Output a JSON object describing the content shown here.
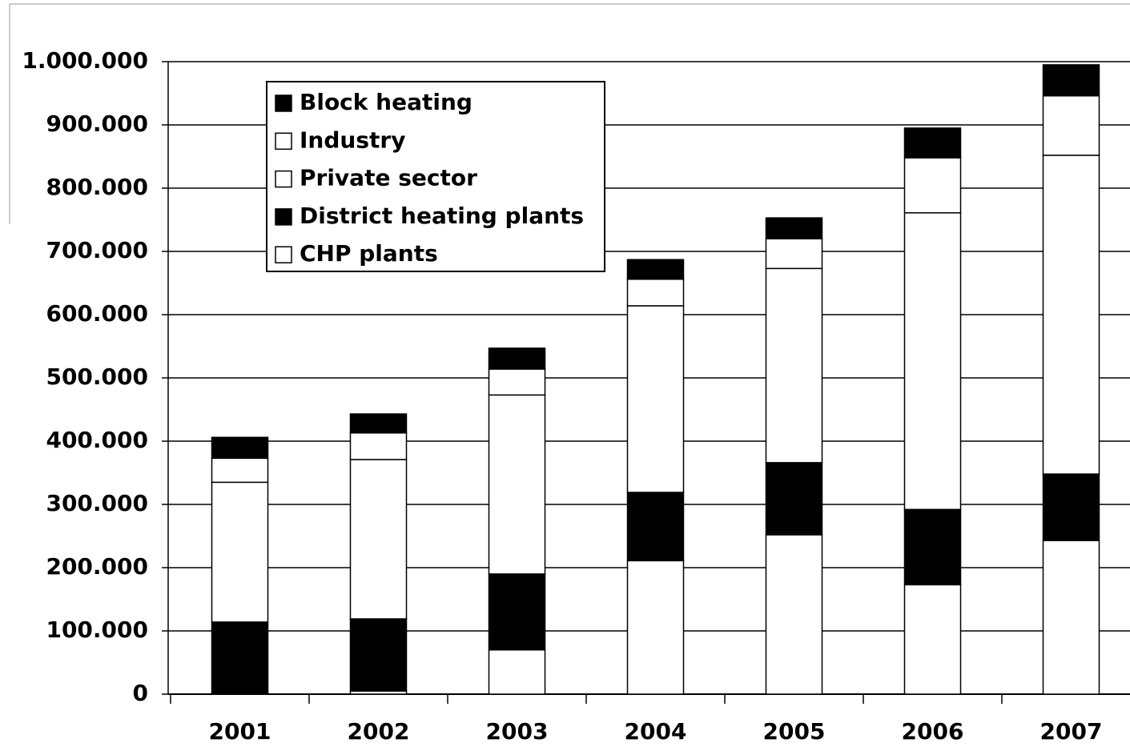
{
  "chart_data": {
    "type": "stacked-bar",
    "categories": [
      "2001",
      "2002",
      "2003",
      "2004",
      "2005",
      "2006",
      "2007"
    ],
    "series": [
      {
        "name": "CHP plants",
        "color": "#ffffff",
        "values": [
          0,
          5000,
          70000,
          211000,
          252000,
          173000,
          243000
        ]
      },
      {
        "name": "District heating plants",
        "color": "#000000",
        "values": [
          114000,
          114000,
          120000,
          108000,
          114000,
          119000,
          105000
        ]
      },
      {
        "name": "Private sector",
        "color": "#ffffff",
        "values": [
          221000,
          252000,
          283000,
          295000,
          307000,
          469000,
          504000
        ]
      },
      {
        "name": "Industry",
        "color": "#ffffff",
        "values": [
          38000,
          42000,
          41000,
          42000,
          47000,
          87000,
          94000
        ]
      },
      {
        "name": "Block heating",
        "color": "#000000",
        "values": [
          33000,
          30000,
          33000,
          31000,
          33000,
          47000,
          49000
        ]
      }
    ],
    "ylim": [
      0,
      1000000
    ],
    "yticks": [
      0,
      {
        "value": 100000,
        "label": "100.000"
      },
      {
        "value": 200000,
        "label": "200.000"
      },
      {
        "value": 300000,
        "label": "300.000"
      },
      {
        "value": 400000,
        "label": "400.000"
      },
      {
        "value": 500000,
        "label": "500.000"
      },
      {
        "value": 600000,
        "label": "600.000"
      },
      {
        "value": 700000,
        "label": "700.000"
      },
      {
        "value": 800000,
        "label": "800.000"
      },
      {
        "value": 900000,
        "label": "900.000"
      },
      {
        "value": 1000000,
        "label": "1.000.000"
      }
    ],
    "grid": true
  }
}
